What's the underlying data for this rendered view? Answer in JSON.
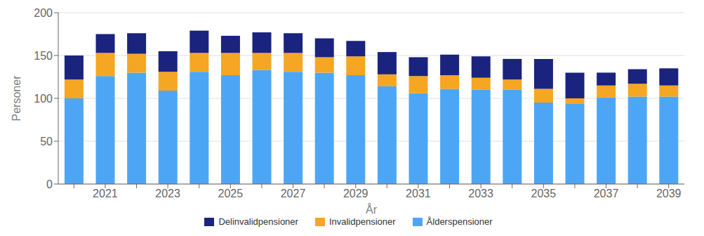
{
  "chart_data": {
    "type": "bar",
    "stacked": true,
    "xlabel": "År",
    "ylabel": "Personer",
    "categories": [
      null,
      "2021",
      null,
      "2023",
      null,
      "2025",
      null,
      "2027",
      null,
      "2029",
      null,
      "2031",
      null,
      "2033",
      null,
      "2035",
      null,
      "2037",
      null,
      "2039"
    ],
    "series": [
      {
        "name": "Ålderspensioner",
        "color": "#4da6f5",
        "values": [
          100,
          126,
          130,
          109,
          131,
          127,
          133,
          131,
          130,
          127,
          114,
          106,
          111,
          110,
          110,
          95,
          94,
          101,
          102,
          102
        ]
      },
      {
        "name": "Invalidpensioner",
        "color": "#f5a623",
        "values": [
          22,
          27,
          22,
          22,
          22,
          26,
          20,
          22,
          18,
          22,
          14,
          20,
          16,
          14,
          12,
          16,
          6,
          14,
          15,
          13
        ]
      },
      {
        "name": "Delinvalidpensioner",
        "color": "#1a237e",
        "values": [
          28,
          22,
          24,
          24,
          26,
          20,
          24,
          23,
          22,
          18,
          26,
          22,
          24,
          25,
          24,
          35,
          30,
          15,
          17,
          20
        ]
      }
    ],
    "ylim": [
      0,
      200
    ],
    "yticks": [
      0,
      50,
      100,
      150,
      200
    ],
    "grid": true,
    "legend": "bottom"
  }
}
